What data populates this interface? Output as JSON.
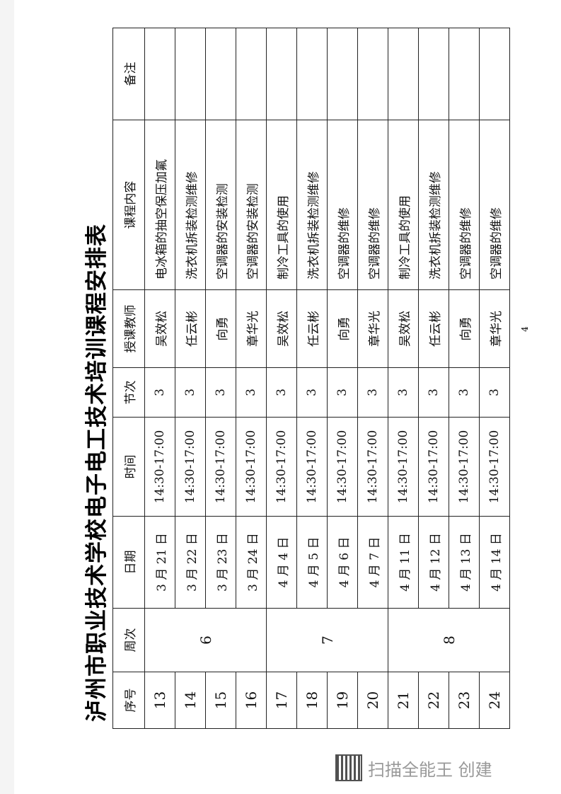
{
  "title": "泸州市职业技术学校电子电工技术培训课程安排表",
  "headers": [
    "序号",
    "周次",
    "日期",
    "时间",
    "节次",
    "授课教师",
    "课程内容",
    "备注"
  ],
  "weeks": [
    "6",
    "7",
    "8"
  ],
  "rows": [
    {
      "no": "13",
      "date": "3 月 21 日",
      "time": "14:30-17:00",
      "periods": "3",
      "teacher": "吴效松",
      "content": "电冰箱的抽空保压加氟",
      "note": ""
    },
    {
      "no": "14",
      "date": "3 月 22 日",
      "time": "14:30-17:00",
      "periods": "3",
      "teacher": "任云彬",
      "content": "洗衣机拆装检测维修",
      "note": ""
    },
    {
      "no": "15",
      "date": "3 月 23 日",
      "time": "14:30-17:00",
      "periods": "3",
      "teacher": "向勇",
      "content": "空调器的安装检测",
      "note": ""
    },
    {
      "no": "16",
      "date": "3 月 24 日",
      "time": "14:30-17:00",
      "periods": "3",
      "teacher": "章华光",
      "content": "空调器的安装检测",
      "note": ""
    },
    {
      "no": "17",
      "date": "4 月 4 日",
      "time": "14:30-17:00",
      "periods": "3",
      "teacher": "吴效松",
      "content": "制冷工具的使用",
      "note": ""
    },
    {
      "no": "18",
      "date": "4 月 5 日",
      "time": "14:30-17:00",
      "periods": "3",
      "teacher": "任云彬",
      "content": "洗衣机拆装检测维修",
      "note": ""
    },
    {
      "no": "19",
      "date": "4 月 6 日",
      "time": "14:30-17:00",
      "periods": "3",
      "teacher": "向勇",
      "content": "空调器的维修",
      "note": ""
    },
    {
      "no": "20",
      "date": "4 月 7 日",
      "time": "14:30-17:00",
      "periods": "3",
      "teacher": "章华光",
      "content": "空调器的维修",
      "note": ""
    },
    {
      "no": "21",
      "date": "4 月 11 日",
      "time": "14:30-17:00",
      "periods": "3",
      "teacher": "吴效松",
      "content": "制冷工具的使用",
      "note": ""
    },
    {
      "no": "22",
      "date": "4 月 12 日",
      "time": "14:30-17:00",
      "periods": "3",
      "teacher": "任云彬",
      "content": "洗衣机拆装检测维修",
      "note": ""
    },
    {
      "no": "23",
      "date": "4 月 13 日",
      "time": "14:30-17:00",
      "periods": "3",
      "teacher": "向勇",
      "content": "空调器的维修",
      "note": ""
    },
    {
      "no": "24",
      "date": "4 月 14 日",
      "time": "14:30-17:00",
      "periods": "3",
      "teacher": "章华光",
      "content": "空调器的维修",
      "note": ""
    }
  ],
  "page_number": "4",
  "watermark": {
    "text": "扫描全能王 创建",
    "icon": "qr-code-icon"
  }
}
